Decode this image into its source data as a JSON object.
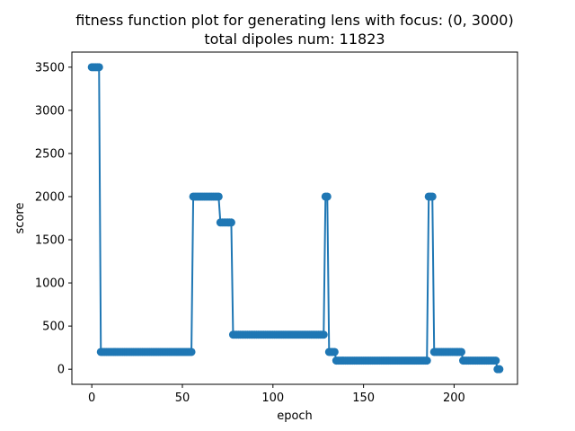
{
  "chart_data": {
    "type": "line",
    "title_line1": "fitness function plot for generating lens with focus: (0, 3000)",
    "title_line2": "total dipoles num: 11823",
    "xlabel": "epoch",
    "ylabel": "score",
    "xlim": [
      -11,
      235
    ],
    "ylim": [
      -175,
      3675
    ],
    "x_ticks": [
      0,
      50,
      100,
      150,
      200
    ],
    "y_ticks": [
      0,
      500,
      1000,
      1500,
      2000,
      2500,
      3000,
      3500
    ],
    "grid": false,
    "legend": "none",
    "marker": "circle",
    "color": "#1f77b4",
    "segments": [
      {
        "x_start": 0,
        "x_end": 5,
        "y": 3500
      },
      {
        "x_start": 5,
        "x_end": 56,
        "y": 200
      },
      {
        "x_start": 56,
        "x_end": 71,
        "y": 2000
      },
      {
        "x_start": 71,
        "x_end": 78,
        "y": 1700
      },
      {
        "x_start": 78,
        "x_end": 129,
        "y": 400
      },
      {
        "x_start": 129,
        "x_end": 131,
        "y": 2000
      },
      {
        "x_start": 131,
        "x_end": 135,
        "y": 200
      },
      {
        "x_start": 135,
        "x_end": 186,
        "y": 100
      },
      {
        "x_start": 186,
        "x_end": 189,
        "y": 2000
      },
      {
        "x_start": 189,
        "x_end": 205,
        "y": 200
      },
      {
        "x_start": 205,
        "x_end": 224,
        "y": 100
      },
      {
        "x_start": 224,
        "x_end": 225,
        "y": 0
      }
    ]
  }
}
